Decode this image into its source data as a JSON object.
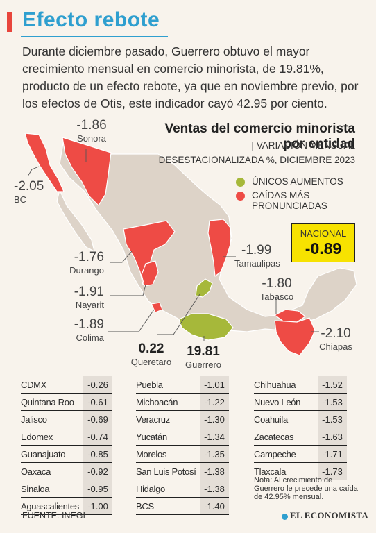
{
  "header": {
    "title": "Efecto rebote",
    "lede": "Durante diciembre pasado, Guerrero obtuvo el mayor crecimiento mensual en comercio minorista, de 19.81%, producto de un efecto rebote, ya que en noviembre previo, por los efectos de Otis, este indicador cayó 42.95 por ciento."
  },
  "legend": {
    "title": "Ventas del comercio minorista por entidad",
    "subtitle_head": "VARIACIÓN MENSUAL",
    "subtitle_tail": "DESESTACIONALIZADA %, DICIEMBRE 2023",
    "green_label": "ÚNICOS AUMENTOS",
    "red_label_1": "CAÍDAS MÁS",
    "red_label_2": "PRONUNCIADAS",
    "green_color": "#a6b83a",
    "red_color": "#ee4b45"
  },
  "nacional": {
    "label": "NACIONAL",
    "value": "-0.89"
  },
  "annotations": {
    "sonora": {
      "value": "-1.86",
      "name": "Sonora"
    },
    "bc": {
      "value": "-2.05",
      "name": "BC"
    },
    "durango": {
      "value": "-1.76",
      "name": "Durango"
    },
    "nayarit": {
      "value": "-1.91",
      "name": "Nayarit"
    },
    "colima": {
      "value": "-1.89",
      "name": "Colima"
    },
    "queretaro": {
      "value": "0.22",
      "name": "Queretaro"
    },
    "guerrero": {
      "value": "19.81",
      "name": "Guerrero"
    },
    "tamaulipas": {
      "value": "-1.99",
      "name": "Tamaulipas"
    },
    "tabasco": {
      "value": "-1.80",
      "name": "Tabasco"
    },
    "chiapas": {
      "value": "-2.10",
      "name": "Chiapas"
    }
  },
  "table": {
    "col1": [
      {
        "name": "CDMX",
        "value": "-0.26"
      },
      {
        "name": "Quintana Roo",
        "value": "-0.61"
      },
      {
        "name": "Jalisco",
        "value": "-0.69"
      },
      {
        "name": "Edomex",
        "value": "-0.74"
      },
      {
        "name": "Guanajuato",
        "value": "-0.85"
      },
      {
        "name": "Oaxaca",
        "value": "-0.92"
      },
      {
        "name": "Sinaloa",
        "value": "-0.95"
      },
      {
        "name": "Aguascalientes",
        "value": "-1.00"
      }
    ],
    "col2": [
      {
        "name": "Puebla",
        "value": "-1.01"
      },
      {
        "name": "Michoacán",
        "value": "-1.22"
      },
      {
        "name": "Veracruz",
        "value": "-1.30"
      },
      {
        "name": "Yucatán",
        "value": "-1.34"
      },
      {
        "name": "Morelos",
        "value": "-1.35"
      },
      {
        "name": "San Luis Potosí",
        "value": "-1.38"
      },
      {
        "name": "Hidalgo",
        "value": "-1.38"
      },
      {
        "name": "BCS",
        "value": "-1.40"
      }
    ],
    "col3": [
      {
        "name": "Chihuahua",
        "value": "-1.52"
      },
      {
        "name": "Nuevo León",
        "value": "-1.53"
      },
      {
        "name": "Coahuila",
        "value": "-1.53"
      },
      {
        "name": "Zacatecas",
        "value": "-1.63"
      },
      {
        "name": "Campeche",
        "value": "-1.71"
      },
      {
        "name": "Tlaxcala",
        "value": "-1.73"
      }
    ]
  },
  "note": "Nota: Al crecimiento de Guerrero le precede una caída de 42.95% mensual.",
  "source": "FUENTE: INEGI",
  "brand": "EL ECONOMISTA"
}
